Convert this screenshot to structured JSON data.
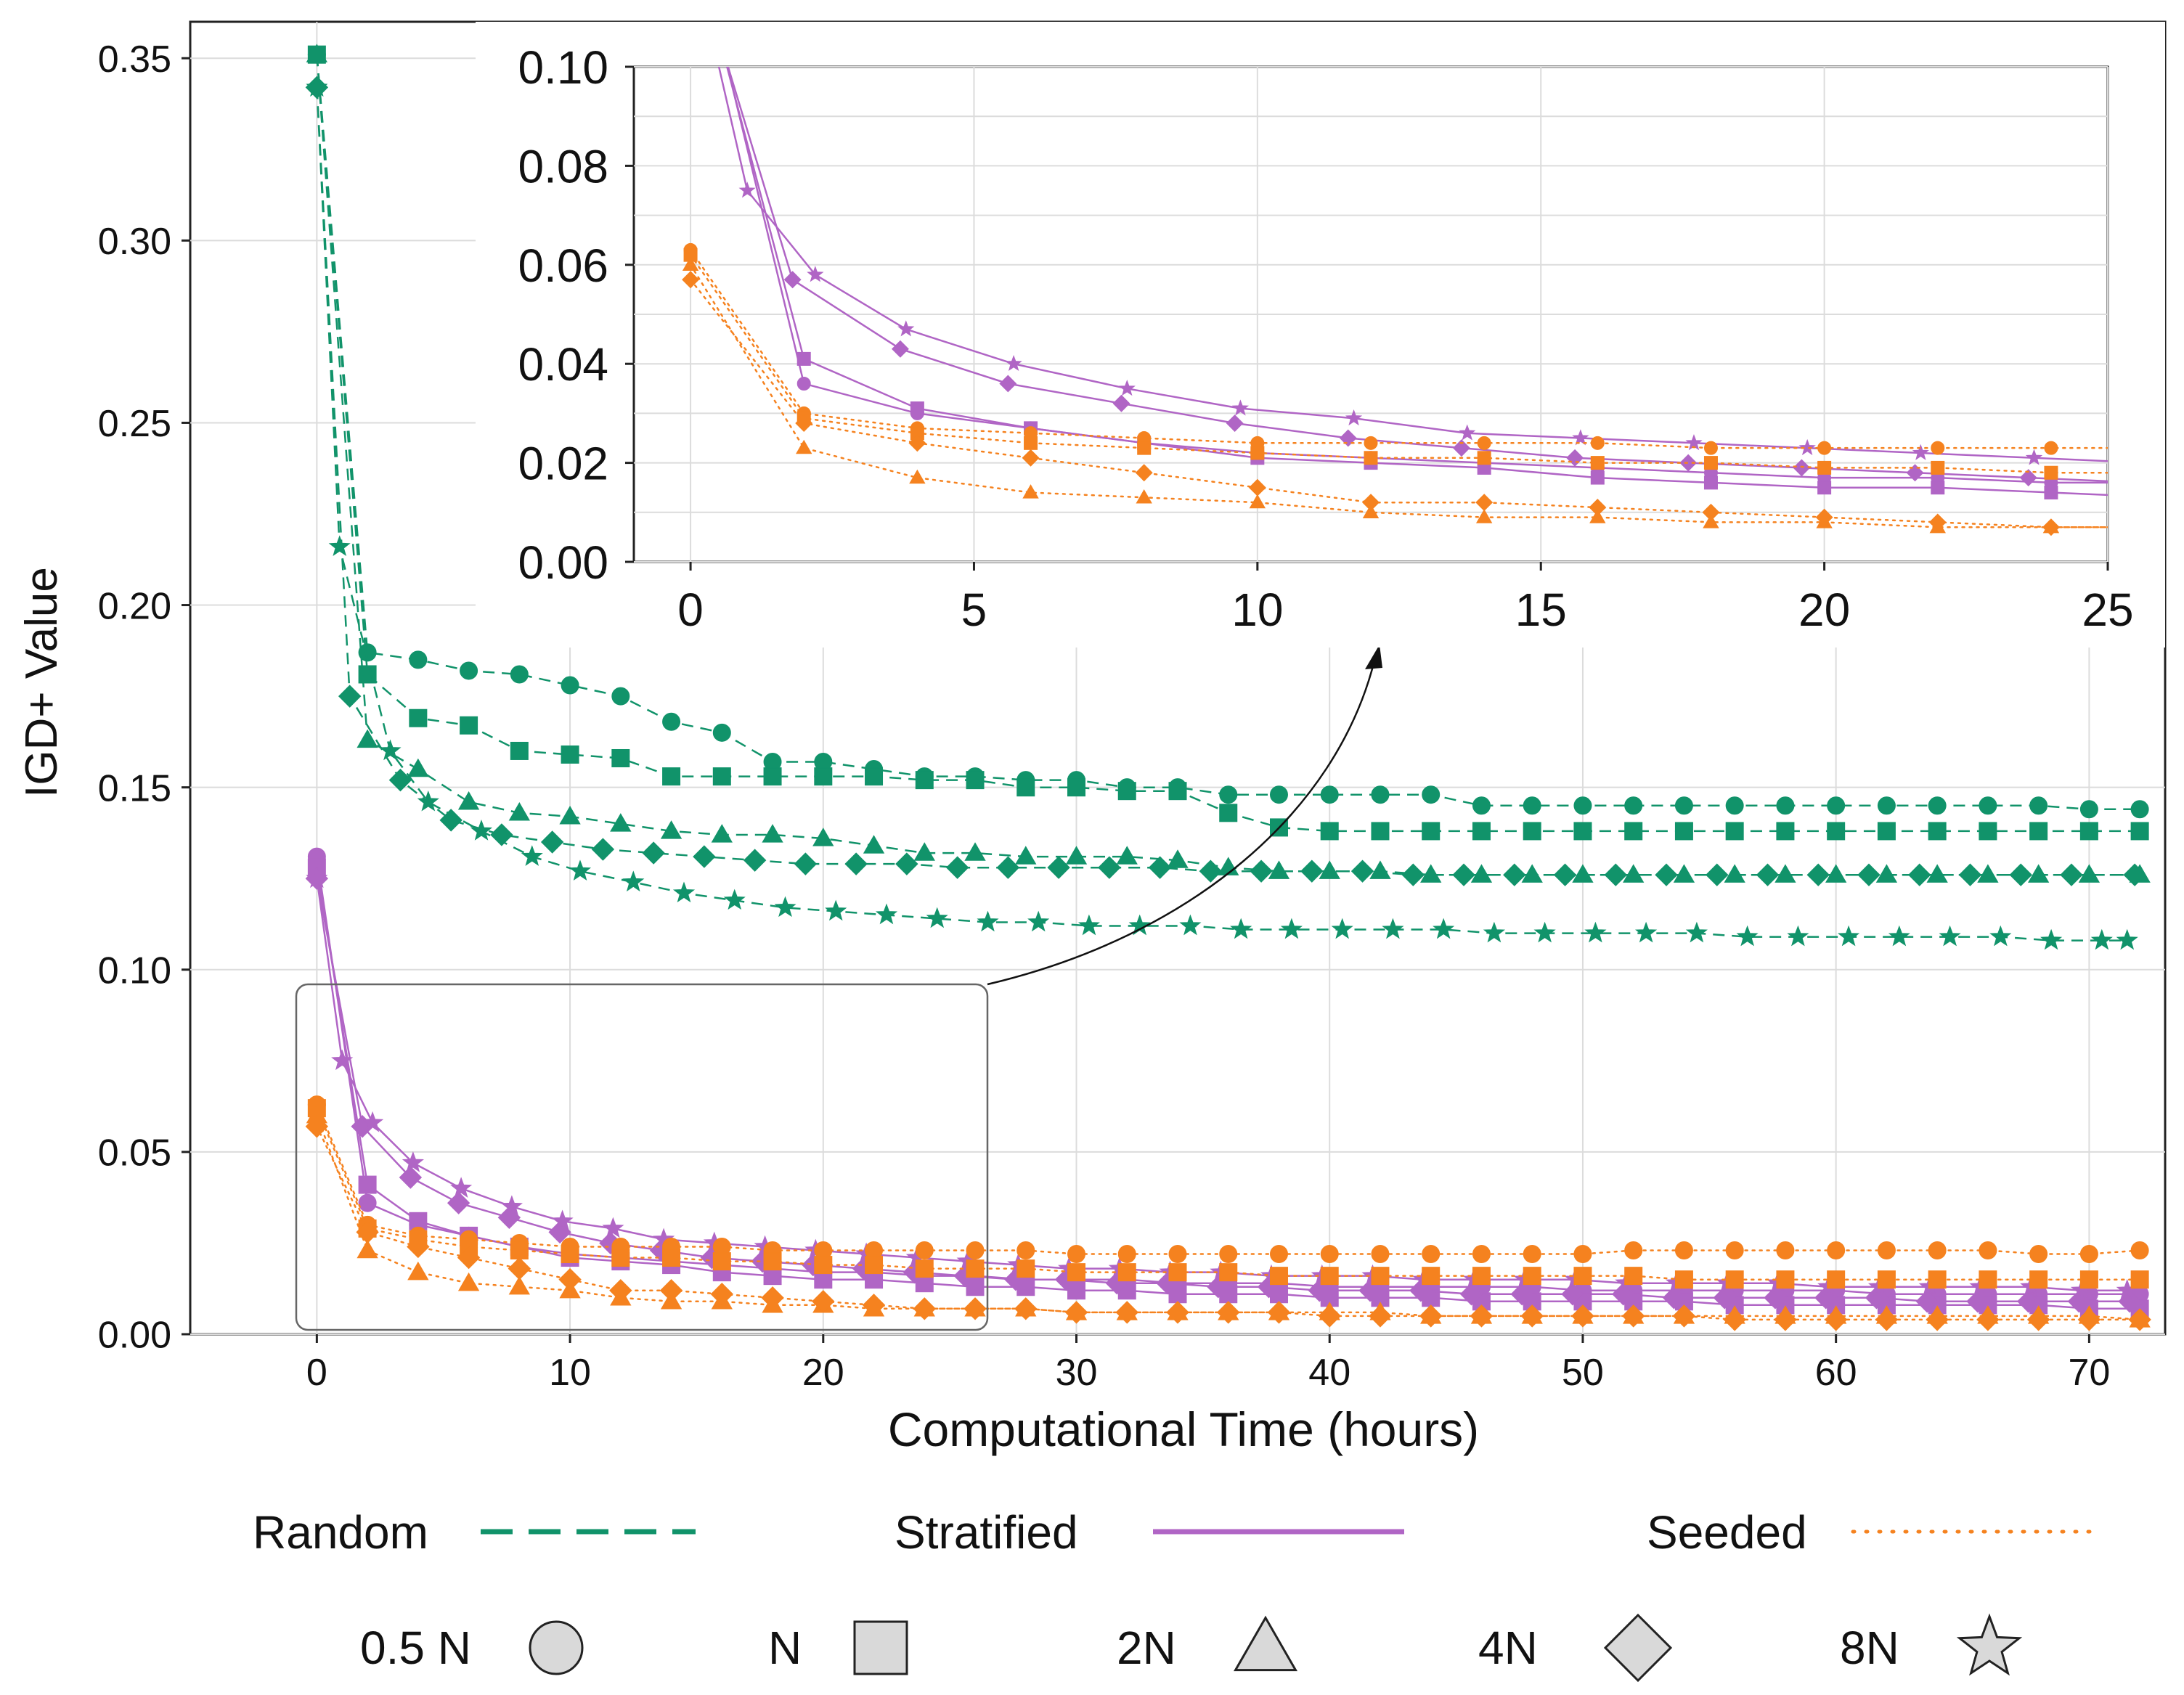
{
  "chart_data": {
    "type": "line",
    "xlabel": "Computational Time (hours)",
    "ylabel": "IGD+ Value",
    "xlim": [
      -5,
      73
    ],
    "ylim": [
      0,
      0.36
    ],
    "x_ticks": [
      "0",
      "10",
      "20",
      "30",
      "40",
      "50",
      "60",
      "70"
    ],
    "y_ticks": [
      "0.00",
      "0.05",
      "0.10",
      "0.15",
      "0.20",
      "0.25",
      "0.30",
      "0.35"
    ],
    "inset": {
      "xlim": [
        -1,
        25
      ],
      "ylim": [
        0,
        0.1
      ],
      "x_ticks": [
        "0",
        "5",
        "10",
        "15",
        "20",
        "25"
      ],
      "y_ticks": [
        "0.00",
        "0.02",
        "0.04",
        "0.06",
        "0.08",
        "0.10"
      ]
    },
    "legend_methods": [
      {
        "name": "Random",
        "style": "dashed",
        "color": "#11936a"
      },
      {
        "name": "Stratified",
        "style": "solid",
        "color": "#b065c5"
      },
      {
        "name": "Seeded",
        "style": "dotted",
        "color": "#f5821f"
      }
    ],
    "legend_sizes": [
      {
        "name": "0.5 N",
        "marker": "circle"
      },
      {
        "name": "N",
        "marker": "square"
      },
      {
        "name": "2N",
        "marker": "triangle"
      },
      {
        "name": "4N",
        "marker": "diamond"
      },
      {
        "name": "8N",
        "marker": "star"
      }
    ],
    "series": [
      {
        "name": "Random 0.5 N",
        "method": "Random",
        "size": "0.5 N",
        "x": [
          0,
          2,
          4,
          6,
          8,
          10,
          12,
          14,
          16,
          18,
          20,
          22,
          24,
          26,
          28,
          30,
          32,
          34,
          36,
          38,
          40,
          42,
          44,
          46,
          48,
          50,
          52,
          54,
          56,
          58,
          60,
          62,
          64,
          66,
          68,
          70,
          72
        ],
        "values": [
          0.351,
          0.187,
          0.185,
          0.182,
          0.181,
          0.178,
          0.175,
          0.168,
          0.165,
          0.157,
          0.157,
          0.155,
          0.153,
          0.153,
          0.152,
          0.152,
          0.15,
          0.15,
          0.148,
          0.148,
          0.148,
          0.148,
          0.148,
          0.145,
          0.145,
          0.145,
          0.145,
          0.145,
          0.145,
          0.145,
          0.145,
          0.145,
          0.145,
          0.145,
          0.145,
          0.144,
          0.144
        ]
      },
      {
        "name": "Random N",
        "method": "Random",
        "size": "N",
        "x": [
          0,
          2,
          4,
          6,
          8,
          10,
          12,
          14,
          16,
          18,
          20,
          22,
          24,
          26,
          28,
          30,
          32,
          34,
          36,
          38,
          40,
          42,
          44,
          46,
          48,
          50,
          52,
          54,
          56,
          58,
          60,
          62,
          64,
          66,
          68,
          70,
          72
        ],
        "values": [
          0.351,
          0.181,
          0.169,
          0.167,
          0.16,
          0.159,
          0.158,
          0.153,
          0.153,
          0.153,
          0.153,
          0.153,
          0.152,
          0.152,
          0.15,
          0.15,
          0.149,
          0.149,
          0.143,
          0.139,
          0.138,
          0.138,
          0.138,
          0.138,
          0.138,
          0.138,
          0.138,
          0.138,
          0.138,
          0.138,
          0.138,
          0.138,
          0.138,
          0.138,
          0.138,
          0.138,
          0.138
        ]
      },
      {
        "name": "Random 2N",
        "method": "Random",
        "size": "2N",
        "x": [
          0,
          2,
          4,
          6,
          8,
          10,
          12,
          14,
          16,
          18,
          20,
          22,
          24,
          26,
          28,
          30,
          32,
          34,
          36,
          38,
          40,
          42,
          44,
          46,
          48,
          50,
          52,
          54,
          56,
          58,
          60,
          62,
          64,
          66,
          68,
          70,
          72
        ],
        "values": [
          0.351,
          0.163,
          0.155,
          0.146,
          0.143,
          0.142,
          0.14,
          0.138,
          0.137,
          0.137,
          0.136,
          0.134,
          0.132,
          0.132,
          0.131,
          0.131,
          0.131,
          0.13,
          0.128,
          0.127,
          0.127,
          0.127,
          0.126,
          0.126,
          0.126,
          0.126,
          0.126,
          0.126,
          0.126,
          0.126,
          0.126,
          0.126,
          0.126,
          0.126,
          0.126,
          0.126,
          0.126
        ]
      },
      {
        "name": "Random 4N",
        "method": "Random",
        "size": "4N",
        "x": [
          0,
          1.3,
          3.3,
          5.3,
          7.3,
          9.3,
          11.3,
          13.3,
          15.3,
          17.3,
          19.3,
          21.3,
          23.3,
          25.3,
          27.3,
          29.3,
          31.3,
          33.3,
          35.3,
          37.3,
          39.3,
          41.3,
          43.3,
          45.3,
          47.3,
          49.3,
          51.3,
          53.3,
          55.3,
          57.3,
          59.3,
          61.3,
          63.3,
          65.3,
          67.3,
          69.3,
          71.8
        ],
        "values": [
          0.342,
          0.175,
          0.152,
          0.141,
          0.137,
          0.135,
          0.133,
          0.132,
          0.131,
          0.13,
          0.129,
          0.129,
          0.129,
          0.128,
          0.128,
          0.128,
          0.128,
          0.128,
          0.127,
          0.127,
          0.127,
          0.127,
          0.126,
          0.126,
          0.126,
          0.126,
          0.126,
          0.126,
          0.126,
          0.126,
          0.126,
          0.126,
          0.126,
          0.126,
          0.126,
          0.126,
          0.126
        ]
      },
      {
        "name": "Random 8N",
        "method": "Random",
        "size": "8N",
        "x": [
          0,
          0.9,
          2.9,
          4.4,
          6.5,
          8.5,
          10.4,
          12.5,
          14.5,
          16.5,
          18.5,
          20.5,
          22.5,
          24.5,
          26.5,
          28.5,
          30.5,
          32.5,
          34.5,
          36.5,
          38.5,
          40.5,
          42.5,
          44.5,
          46.5,
          48.5,
          50.5,
          52.5,
          54.5,
          56.5,
          58.5,
          60.5,
          62.5,
          64.5,
          66.5,
          68.5,
          70.5,
          71.5
        ],
        "values": [
          0.342,
          0.216,
          0.16,
          0.146,
          0.138,
          0.131,
          0.127,
          0.124,
          0.121,
          0.119,
          0.117,
          0.116,
          0.115,
          0.114,
          0.113,
          0.113,
          0.112,
          0.112,
          0.112,
          0.111,
          0.111,
          0.111,
          0.111,
          0.111,
          0.11,
          0.11,
          0.11,
          0.11,
          0.11,
          0.109,
          0.109,
          0.109,
          0.109,
          0.109,
          0.109,
          0.108,
          0.108,
          0.108
        ]
      },
      {
        "name": "Stratified 0.5 N",
        "method": "Stratified",
        "size": "0.5 N",
        "x": [
          0,
          2,
          4,
          6,
          8,
          10,
          12,
          14,
          16,
          18,
          20,
          22,
          24,
          26,
          28,
          30,
          32,
          34,
          36,
          38,
          40,
          42,
          44,
          46,
          48,
          50,
          52,
          54,
          56,
          58,
          60,
          62,
          64,
          66,
          68,
          70,
          72
        ],
        "values": [
          0.131,
          0.036,
          0.03,
          0.027,
          0.024,
          0.022,
          0.021,
          0.02,
          0.019,
          0.018,
          0.017,
          0.017,
          0.016,
          0.016,
          0.015,
          0.015,
          0.015,
          0.014,
          0.014,
          0.014,
          0.013,
          0.013,
          0.013,
          0.013,
          0.013,
          0.012,
          0.012,
          0.012,
          0.012,
          0.012,
          0.012,
          0.011,
          0.011,
          0.011,
          0.011,
          0.011,
          0.011
        ]
      },
      {
        "name": "Stratified N",
        "method": "Stratified",
        "size": "N",
        "x": [
          0,
          2,
          4,
          6,
          8,
          10,
          12,
          14,
          16,
          18,
          20,
          22,
          24,
          26,
          28,
          30,
          32,
          34,
          36,
          38,
          40,
          42,
          44,
          46,
          48,
          50,
          52,
          54,
          56,
          58,
          60,
          62,
          64,
          66,
          68,
          70,
          72
        ],
        "values": [
          0.128,
          0.041,
          0.031,
          0.027,
          0.024,
          0.021,
          0.02,
          0.019,
          0.017,
          0.016,
          0.015,
          0.015,
          0.014,
          0.013,
          0.013,
          0.012,
          0.012,
          0.011,
          0.011,
          0.011,
          0.01,
          0.01,
          0.01,
          0.009,
          0.009,
          0.009,
          0.009,
          0.009,
          0.008,
          0.008,
          0.008,
          0.008,
          0.008,
          0.008,
          0.008,
          0.007,
          0.007
        ]
      },
      {
        "name": "Stratified 4N",
        "method": "Stratified",
        "size": "4N",
        "x": [
          0,
          1.8,
          3.7,
          5.6,
          7.6,
          9.6,
          11.6,
          13.6,
          15.6,
          17.6,
          19.6,
          21.6,
          23.6,
          25.6,
          27.6,
          29.6,
          31.6,
          33.6,
          35.6,
          37.6,
          39.6,
          41.6,
          43.6,
          45.6,
          47.6,
          49.6,
          51.6,
          53.6,
          55.6,
          57.6,
          59.6,
          61.6,
          63.6,
          65.6,
          67.6,
          69.6,
          71.6
        ],
        "values": [
          0.125,
          0.057,
          0.043,
          0.036,
          0.032,
          0.028,
          0.025,
          0.023,
          0.021,
          0.02,
          0.019,
          0.018,
          0.017,
          0.016,
          0.015,
          0.015,
          0.014,
          0.014,
          0.013,
          0.013,
          0.012,
          0.012,
          0.012,
          0.011,
          0.011,
          0.011,
          0.011,
          0.01,
          0.01,
          0.01,
          0.01,
          0.01,
          0.009,
          0.009,
          0.009,
          0.009,
          0.009
        ]
      },
      {
        "name": "Stratified 8N",
        "method": "Stratified",
        "size": "8N",
        "x": [
          0,
          1,
          2.2,
          3.8,
          5.7,
          7.7,
          9.7,
          11.7,
          13.7,
          15.7,
          17.7,
          19.7,
          21.7,
          23.7,
          25.7,
          27.7,
          29.7,
          31.7,
          33.7,
          35.7,
          37.7,
          39.7,
          41.7,
          43.7,
          45.7,
          47.7,
          49.7,
          51.7,
          53.7,
          55.7,
          57.7,
          59.7,
          61.7,
          63.7,
          65.7,
          67.7,
          69.7,
          71.5
        ],
        "values": [
          0.125,
          0.075,
          0.058,
          0.047,
          0.04,
          0.035,
          0.031,
          0.029,
          0.026,
          0.025,
          0.024,
          0.023,
          0.022,
          0.021,
          0.02,
          0.019,
          0.018,
          0.018,
          0.017,
          0.017,
          0.016,
          0.016,
          0.016,
          0.015,
          0.015,
          0.015,
          0.015,
          0.014,
          0.014,
          0.014,
          0.014,
          0.013,
          0.013,
          0.013,
          0.013,
          0.013,
          0.012,
          0.012
        ]
      },
      {
        "name": "Seeded 0.5 N",
        "method": "Seeded",
        "size": "0.5 N",
        "x": [
          0,
          2,
          4,
          6,
          8,
          10,
          12,
          14,
          16,
          18,
          20,
          22,
          24,
          26,
          28,
          30,
          32,
          34,
          36,
          38,
          40,
          42,
          44,
          46,
          48,
          50,
          52,
          54,
          56,
          58,
          60,
          62,
          64,
          66,
          68,
          70,
          72
        ],
        "values": [
          0.063,
          0.03,
          0.027,
          0.026,
          0.025,
          0.024,
          0.024,
          0.024,
          0.024,
          0.023,
          0.023,
          0.023,
          0.023,
          0.023,
          0.023,
          0.022,
          0.022,
          0.022,
          0.022,
          0.022,
          0.022,
          0.022,
          0.022,
          0.022,
          0.022,
          0.022,
          0.023,
          0.023,
          0.023,
          0.023,
          0.023,
          0.023,
          0.023,
          0.023,
          0.022,
          0.022,
          0.023
        ]
      },
      {
        "name": "Seeded N",
        "method": "Seeded",
        "size": "N",
        "x": [
          0,
          2,
          4,
          6,
          8,
          10,
          12,
          14,
          16,
          18,
          20,
          22,
          24,
          26,
          28,
          30,
          32,
          34,
          36,
          38,
          40,
          42,
          44,
          46,
          48,
          50,
          52,
          54,
          56,
          58,
          60,
          62,
          64,
          66,
          68,
          70,
          72
        ],
        "values": [
          0.062,
          0.029,
          0.026,
          0.024,
          0.023,
          0.022,
          0.021,
          0.021,
          0.02,
          0.02,
          0.019,
          0.019,
          0.018,
          0.018,
          0.018,
          0.017,
          0.017,
          0.017,
          0.017,
          0.016,
          0.016,
          0.016,
          0.016,
          0.016,
          0.016,
          0.016,
          0.016,
          0.015,
          0.015,
          0.015,
          0.015,
          0.015,
          0.015,
          0.015,
          0.015,
          0.015,
          0.015
        ]
      },
      {
        "name": "Seeded 2N",
        "method": "Seeded",
        "size": "2N",
        "x": [
          0,
          2,
          4,
          6,
          8,
          10,
          12,
          14,
          16,
          18,
          20,
          22,
          24,
          26,
          28,
          30,
          32,
          34,
          36,
          38,
          40,
          42,
          44,
          46,
          48,
          50,
          52,
          54,
          56,
          58,
          60,
          62,
          64,
          66,
          68,
          70,
          72
        ],
        "values": [
          0.06,
          0.023,
          0.017,
          0.014,
          0.013,
          0.012,
          0.01,
          0.009,
          0.009,
          0.008,
          0.008,
          0.007,
          0.007,
          0.007,
          0.007,
          0.006,
          0.006,
          0.006,
          0.006,
          0.006,
          0.006,
          0.006,
          0.005,
          0.005,
          0.005,
          0.005,
          0.005,
          0.005,
          0.005,
          0.005,
          0.005,
          0.005,
          0.005,
          0.005,
          0.005,
          0.005,
          0.004
        ]
      },
      {
        "name": "Seeded 4N",
        "method": "Seeded",
        "size": "4N",
        "x": [
          0,
          2,
          4,
          6,
          8,
          10,
          12,
          14,
          16,
          18,
          20,
          22,
          24,
          26,
          28,
          30,
          32,
          34,
          36,
          38,
          40,
          42,
          44,
          46,
          48,
          50,
          52,
          54,
          56,
          58,
          60,
          62,
          64,
          66,
          68,
          70,
          72
        ],
        "values": [
          0.057,
          0.028,
          0.024,
          0.021,
          0.018,
          0.015,
          0.012,
          0.012,
          0.011,
          0.01,
          0.009,
          0.008,
          0.007,
          0.007,
          0.007,
          0.006,
          0.006,
          0.006,
          0.006,
          0.006,
          0.005,
          0.005,
          0.005,
          0.005,
          0.005,
          0.005,
          0.005,
          0.005,
          0.004,
          0.004,
          0.004,
          0.004,
          0.004,
          0.004,
          0.004,
          0.004,
          0.004
        ]
      }
    ]
  }
}
